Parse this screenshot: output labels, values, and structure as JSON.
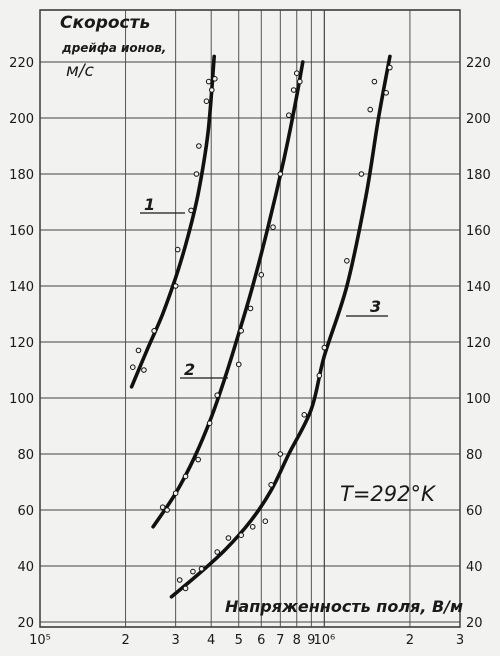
{
  "chart_data": {
    "type": "line",
    "title": "",
    "ylabel_lines": [
      "Скорость",
      "дрейфа ионов,",
      "м/с"
    ],
    "xlabel": "Напряженность поля, В/м",
    "annotation": "T=292°K",
    "x_scale": "log",
    "xlim": [
      100000,
      3000000
    ],
    "ylim": [
      20,
      225
    ],
    "grid": true,
    "y_ticks": [
      20,
      40,
      60,
      80,
      100,
      120,
      140,
      160,
      180,
      200,
      220
    ],
    "x_tick_labels": [
      {
        "x": 100000,
        "label": "10⁵"
      },
      {
        "x": 200000,
        "label": "2"
      },
      {
        "x": 300000,
        "label": "3"
      },
      {
        "x": 400000,
        "label": "4"
      },
      {
        "x": 500000,
        "label": "5"
      },
      {
        "x": 600000,
        "label": "6"
      },
      {
        "x": 700000,
        "label": "7"
      },
      {
        "x": 800000,
        "label": "8"
      },
      {
        "x": 900000,
        "label": "9"
      },
      {
        "x": 1000000,
        "label": "10⁶"
      },
      {
        "x": 2000000,
        "label": "2"
      },
      {
        "x": 3000000,
        "label": "3"
      }
    ],
    "series": [
      {
        "name": "1",
        "curve": [
          [
            210000,
            104
          ],
          [
            240000,
            118
          ],
          [
            270000,
            130
          ],
          [
            300000,
            143
          ],
          [
            330000,
            157
          ],
          [
            360000,
            173
          ],
          [
            390000,
            195
          ],
          [
            410000,
            222
          ]
        ],
        "points": [
          [
            212000,
            111
          ],
          [
            222000,
            117
          ],
          [
            232000,
            110
          ],
          [
            252000,
            124
          ],
          [
            300000,
            140
          ],
          [
            305000,
            153
          ],
          [
            340000,
            167
          ],
          [
            355000,
            180
          ],
          [
            362000,
            190
          ],
          [
            385000,
            206
          ],
          [
            392000,
            213
          ],
          [
            402000,
            210
          ],
          [
            412000,
            214
          ]
        ]
      },
      {
        "name": "2",
        "curve": [
          [
            250000,
            54
          ],
          [
            300000,
            66
          ],
          [
            350000,
            79
          ],
          [
            400000,
            93
          ],
          [
            450000,
            108
          ],
          [
            500000,
            123
          ],
          [
            560000,
            140
          ],
          [
            630000,
            160
          ],
          [
            720000,
            185
          ],
          [
            790000,
            205
          ],
          [
            840000,
            220
          ]
        ],
        "points": [
          [
            270000,
            61
          ],
          [
            280000,
            60
          ],
          [
            300000,
            66
          ],
          [
            325000,
            72
          ],
          [
            360000,
            78
          ],
          [
            395000,
            91
          ],
          [
            420000,
            101
          ],
          [
            500000,
            112
          ],
          [
            510000,
            124
          ],
          [
            550000,
            132
          ],
          [
            600000,
            144
          ],
          [
            660000,
            161
          ],
          [
            700000,
            180
          ],
          [
            750000,
            201
          ],
          [
            780000,
            210
          ],
          [
            800000,
            216
          ],
          [
            820000,
            213
          ]
        ]
      },
      {
        "name": "3",
        "curve": [
          [
            290000,
            29
          ],
          [
            360000,
            37
          ],
          [
            450000,
            46
          ],
          [
            550000,
            56
          ],
          [
            650000,
            67
          ],
          [
            750000,
            80
          ],
          [
            900000,
            96
          ],
          [
            1000000,
            115
          ],
          [
            1200000,
            140
          ],
          [
            1400000,
            172
          ],
          [
            1550000,
            200
          ],
          [
            1700000,
            222
          ]
        ],
        "points": [
          [
            310000,
            35
          ],
          [
            325000,
            32
          ],
          [
            345000,
            38
          ],
          [
            370000,
            39
          ],
          [
            420000,
            45
          ],
          [
            460000,
            50
          ],
          [
            510000,
            51
          ],
          [
            560000,
            54
          ],
          [
            620000,
            56
          ],
          [
            650000,
            69
          ],
          [
            700000,
            80
          ],
          [
            850000,
            94
          ],
          [
            960000,
            108
          ],
          [
            1000000,
            118
          ],
          [
            1200000,
            149
          ],
          [
            1350000,
            180
          ],
          [
            1450000,
            203
          ],
          [
            1500000,
            213
          ],
          [
            1650000,
            209
          ],
          [
            1700000,
            218
          ]
        ]
      }
    ]
  }
}
